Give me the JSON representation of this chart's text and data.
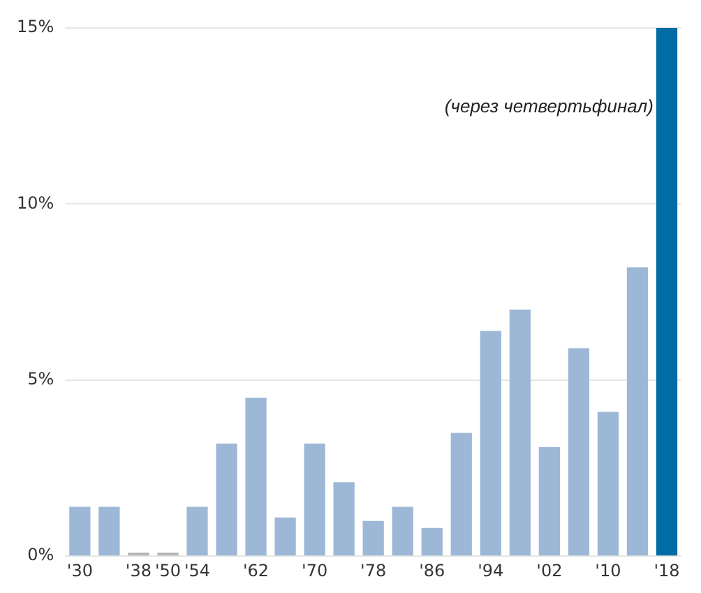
{
  "chart_data": {
    "type": "bar",
    "categories": [
      "'30",
      null,
      "'38",
      "'50",
      "'54",
      null,
      "'62",
      null,
      "'70",
      null,
      "'78",
      null,
      "'86",
      null,
      "'94",
      null,
      "'02",
      null,
      "'10",
      null,
      "'18"
    ],
    "values": [
      1.4,
      1.4,
      0.1,
      0.1,
      1.4,
      3.2,
      4.5,
      1.1,
      3.2,
      2.1,
      1.0,
      1.4,
      0.8,
      3.5,
      6.4,
      7.0,
      3.1,
      5.9,
      4.1,
      8.2,
      15
    ],
    "colors": [
      "#9db8d6",
      "#9db8d6",
      "#b4b4b4",
      "#b4b4b4",
      "#9db8d6",
      "#9db8d6",
      "#9db8d6",
      "#9db8d6",
      "#9db8d6",
      "#9db8d6",
      "#9db8d6",
      "#9db8d6",
      "#9db8d6",
      "#9db8d6",
      "#9db8d6",
      "#9db8d6",
      "#9db8d6",
      "#9db8d6",
      "#9db8d6",
      "#9db8d6",
      "#006ba4"
    ],
    "ylim": [
      0,
      15
    ],
    "yticks": [
      {
        "value": 0,
        "label": "0%"
      },
      {
        "value": 5,
        "label": "5%"
      },
      {
        "value": 10,
        "label": "10%"
      },
      {
        "value": 15,
        "label": "15%"
      }
    ],
    "grid": "y",
    "legend": false,
    "annotations": [
      "(через четвертьфинал)"
    ]
  }
}
